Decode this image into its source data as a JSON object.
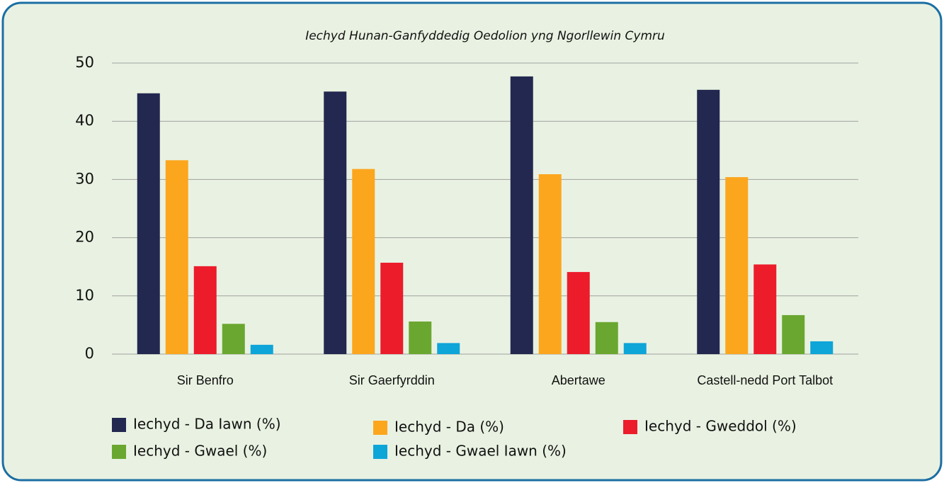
{
  "chart_data": {
    "type": "bar",
    "title": "Iechyd Hunan-Ganfyddedig Oedolion yng Ngorllewin Cymru",
    "categories": [
      "Sir Benfro",
      "Sir Gaerfyrddin",
      "Abertawe",
      "Castell-nedd Port Talbot"
    ],
    "series": [
      {
        "name": "Iechyd - Da Iawn (%)",
        "color": "#232850",
        "values": [
          44.8,
          45.1,
          47.7,
          45.4
        ]
      },
      {
        "name": "Iechyd - Da (%)",
        "color": "#fca61e",
        "values": [
          33.3,
          31.8,
          30.9,
          30.4
        ]
      },
      {
        "name": "Iechyd - Gweddol (%)",
        "color": "#ec1c2b",
        "values": [
          15.1,
          15.7,
          14.1,
          15.4
        ]
      },
      {
        "name": "Iechyd - Gwael (%)",
        "color": "#6aa730",
        "values": [
          5.2,
          5.6,
          5.5,
          6.7
        ]
      },
      {
        "name": "Iechyd - Gwael Iawn (%)",
        "color": "#0ea5d8",
        "values": [
          1.6,
          1.9,
          1.9,
          2.2
        ]
      }
    ],
    "ylim": [
      0,
      50
    ],
    "yticks": [
      0,
      10,
      20,
      30,
      40,
      50
    ],
    "grid": true
  }
}
